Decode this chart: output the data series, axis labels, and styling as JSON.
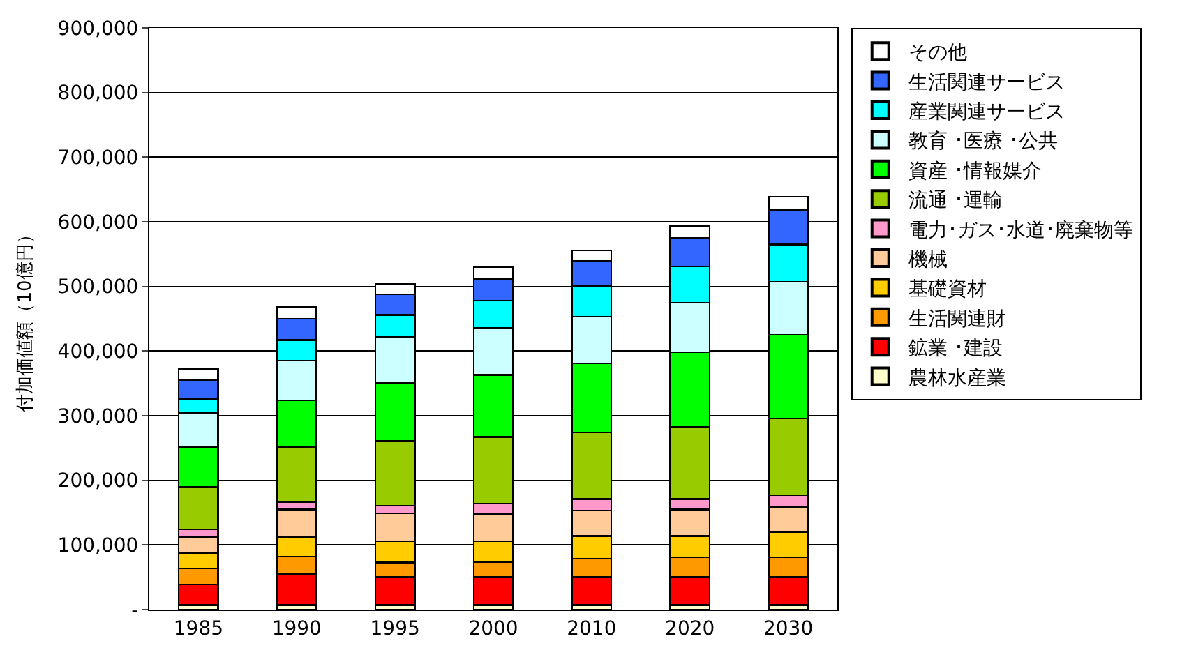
{
  "chart_data": {
    "type": "bar",
    "stacked": true,
    "ylabel": "付加価値額（10億円）",
    "categories": [
      "1985",
      "1990",
      "1995",
      "2000",
      "2010",
      "2020",
      "2030"
    ],
    "series": [
      {
        "name": "農林水産業",
        "color": "#ffffcc",
        "values": [
          7000,
          7000,
          7000,
          7000,
          7000,
          7000,
          7000
        ]
      },
      {
        "name": "鉱業 ･建設",
        "color": "#ff0000",
        "values": [
          32000,
          48000,
          43000,
          43000,
          43000,
          43000,
          43000
        ]
      },
      {
        "name": "生活関連財",
        "color": "#ff9900",
        "values": [
          25000,
          27000,
          23000,
          24000,
          29000,
          31000,
          31000
        ]
      },
      {
        "name": "基礎資材",
        "color": "#ffcc00",
        "values": [
          23000,
          30000,
          33000,
          32000,
          35000,
          33000,
          39000
        ]
      },
      {
        "name": "機械",
        "color": "#ffcc99",
        "values": [
          25000,
          43000,
          43000,
          42000,
          39000,
          41000,
          38000
        ]
      },
      {
        "name": "電力･ガス･水道･廃棄物等",
        "color": "#ff99cc",
        "values": [
          12000,
          11000,
          12000,
          16000,
          18000,
          16000,
          19000
        ]
      },
      {
        "name": "流通 ･運輸",
        "color": "#99cc00",
        "values": [
          66000,
          85000,
          100000,
          103000,
          103000,
          112000,
          119000
        ]
      },
      {
        "name": "資産 ･情報媒介",
        "color": "#00ff00",
        "values": [
          61000,
          73000,
          90000,
          96000,
          107000,
          115000,
          129000
        ]
      },
      {
        "name": "教育 ･医療 ･公共",
        "color": "#ccffff",
        "values": [
          53000,
          61000,
          71000,
          73000,
          72000,
          77000,
          82000
        ]
      },
      {
        "name": "産業関連サービス",
        "color": "#00ffff",
        "values": [
          22000,
          32000,
          34000,
          42000,
          48000,
          56000,
          58000
        ]
      },
      {
        "name": "生活関連サービス",
        "color": "#3366ff",
        "values": [
          29000,
          33000,
          32000,
          33000,
          38000,
          44000,
          54000
        ]
      },
      {
        "name": "その他",
        "color": "#ffffff",
        "values": [
          18000,
          18000,
          16000,
          19000,
          17000,
          19000,
          20000
        ]
      }
    ],
    "ylim": [
      0,
      900000
    ],
    "yticks": [
      {
        "value": 0,
        "label": "-"
      },
      {
        "value": 100000,
        "label": "100,000"
      },
      {
        "value": 200000,
        "label": "200,000"
      },
      {
        "value": 300000,
        "label": "300,000"
      },
      {
        "value": 400000,
        "label": "400,000"
      },
      {
        "value": 500000,
        "label": "500,000"
      },
      {
        "value": 600000,
        "label": "600,000"
      },
      {
        "value": 700000,
        "label": "700,000"
      },
      {
        "value": 800000,
        "label": "800,000"
      },
      {
        "value": 900000,
        "label": "900,000"
      }
    ],
    "grid": "y",
    "legend": "right"
  }
}
